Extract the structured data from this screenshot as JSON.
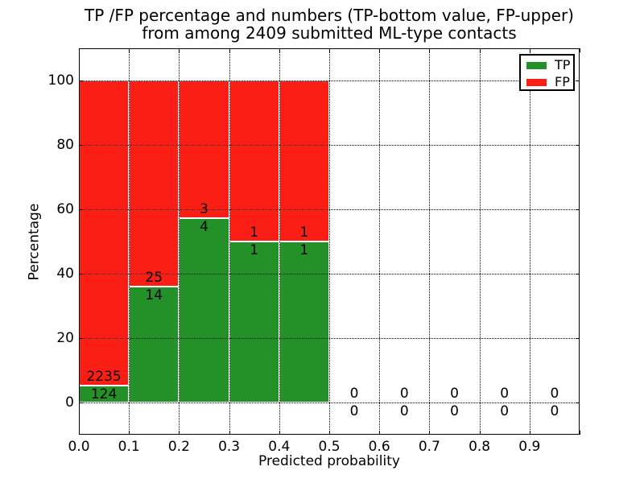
{
  "title": {
    "line1": "TP /FP percentage and numbers (TP-bottom value, FP-upper)",
    "line2": "from among 2409 submitted ML-type contacts"
  },
  "axes": {
    "xlabel": "Predicted probability",
    "ylabel": "Percentage",
    "xtick_labels": [
      "0.0",
      "0.1",
      "0.2",
      "0.3",
      "0.4",
      "0.5",
      "0.6",
      "0.7",
      "0.8",
      "0.9"
    ],
    "ytick_labels": [
      "0",
      "20",
      "40",
      "60",
      "80",
      "100"
    ]
  },
  "legend": {
    "items": [
      {
        "label": "TP",
        "color": "#249128"
      },
      {
        "label": "FP",
        "color": "#fa1e14"
      }
    ]
  },
  "colors": {
    "tp_green": "#249128",
    "fp_red": "#fa1e14",
    "bar_edge": "#ffffff",
    "grid": "#000000",
    "spine": "#000000",
    "background": "#ffffff"
  },
  "chart_data": {
    "type": "bar",
    "stacked": true,
    "title": "TP /FP percentage and numbers (TP-bottom value, FP-upper) from among 2409 submitted ML-type contacts",
    "xlabel": "Predicted probability",
    "ylabel": "Percentage",
    "xlim": [
      0.0,
      1.0
    ],
    "ylim": [
      -10,
      110
    ],
    "xticks": [
      0.0,
      0.1,
      0.2,
      0.3,
      0.4,
      0.5,
      0.6,
      0.7,
      0.8,
      0.9
    ],
    "yticks": [
      0,
      20,
      40,
      60,
      80,
      100
    ],
    "grid": "dotted, drawn above bars",
    "legend_position": "upper right",
    "total_contacts": 2409,
    "bin_width": 0.1,
    "bin_starts": [
      0.0,
      0.1,
      0.2,
      0.3,
      0.4,
      0.5,
      0.6,
      0.7,
      0.8,
      0.9
    ],
    "series": [
      {
        "name": "TP",
        "color": "#249128",
        "counts": [
          124,
          14,
          4,
          1,
          1,
          0,
          0,
          0,
          0,
          0
        ]
      },
      {
        "name": "FP",
        "color": "#fa1e14",
        "counts": [
          2235,
          25,
          3,
          1,
          1,
          0,
          0,
          0,
          0,
          0
        ]
      }
    ],
    "tp_percent_of_bin": [
      5.26,
      35.9,
      57.14,
      50.0,
      50.0,
      0,
      0,
      0,
      0,
      0
    ],
    "bars_normalized_to_percent": 100
  }
}
